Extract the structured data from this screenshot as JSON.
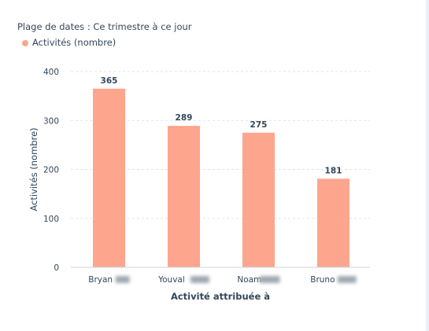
{
  "filter_label": "Plage de dates : Ce trimestre à ce jour",
  "colors": {
    "bar": "#fea58e",
    "grid": "#dfe3eb",
    "text": "#33475b"
  },
  "chart_data": {
    "type": "bar",
    "categories": [
      "Bryan",
      "Youval",
      "Noam",
      "Bruno"
    ],
    "series": [
      {
        "name": "Activités (nombre)",
        "values": [
          365,
          289,
          275,
          181
        ]
      }
    ],
    "xlabel": "Activité attribuée à",
    "ylabel": "Activités (nombre)",
    "ylim": [
      0,
      400
    ],
    "yticks": [
      0,
      100,
      200,
      300,
      400
    ],
    "grid": true,
    "legend": "top-left"
  }
}
